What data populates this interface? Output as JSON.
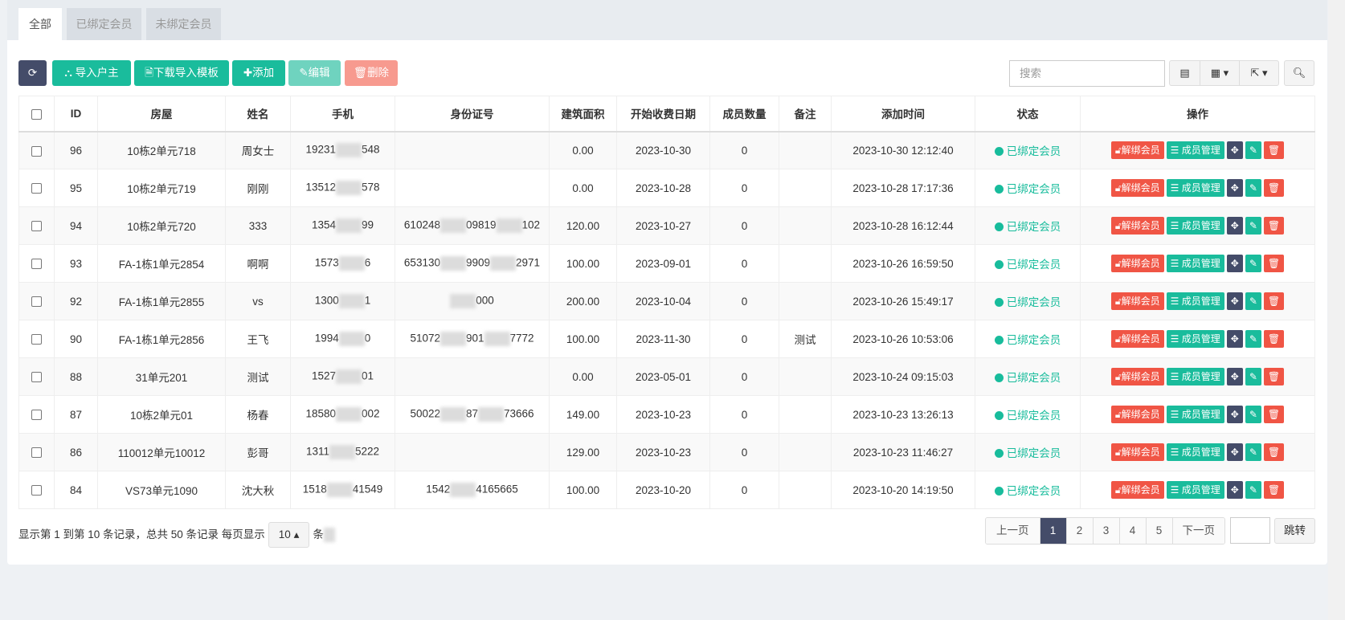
{
  "tabs": [
    "全部",
    "已绑定会员",
    "未绑定会员"
  ],
  "toolbar": {
    "import": "导入户主",
    "template": "下载导入模板",
    "add": "添加",
    "edit": "编辑",
    "delete": "删除",
    "search_placeholder": "搜索"
  },
  "columns": [
    "ID",
    "房屋",
    "姓名",
    "手机",
    "身份证号",
    "建筑面积",
    "开始收费日期",
    "成员数量",
    "备注",
    "添加时间",
    "状态",
    "操作"
  ],
  "rows": [
    {
      "id": "96",
      "house": "10栋2单元718",
      "name": "周女士",
      "phone": [
        "19231",
        "548"
      ],
      "idno": [
        "",
        ""
      ],
      "area": "0.00",
      "start": "2023-10-30",
      "members": "0",
      "remark": "",
      "added": "2023-10-30 12:12:40",
      "status": "已绑定会员"
    },
    {
      "id": "95",
      "house": "10栋2单元719",
      "name": "刚刚",
      "phone": [
        "13512",
        "578"
      ],
      "idno": [
        "",
        ""
      ],
      "area": "0.00",
      "start": "2023-10-28",
      "members": "0",
      "remark": "",
      "added": "2023-10-28 17:17:36",
      "status": "已绑定会员"
    },
    {
      "id": "94",
      "house": "10栋2单元720",
      "name": "333",
      "phone": [
        "1354",
        "99"
      ],
      "idno": [
        "610248",
        "09819",
        "102"
      ],
      "area": "120.00",
      "start": "2023-10-27",
      "members": "0",
      "remark": "",
      "added": "2023-10-28 16:12:44",
      "status": "已绑定会员"
    },
    {
      "id": "93",
      "house": "FA-1栋1单元2854",
      "name": "啊啊",
      "phone": [
        "1573",
        "6"
      ],
      "idno": [
        "653130",
        "9909",
        "2971"
      ],
      "area": "100.00",
      "start": "2023-09-01",
      "members": "0",
      "remark": "",
      "added": "2023-10-26 16:59:50",
      "status": "已绑定会员"
    },
    {
      "id": "92",
      "house": "FA-1栋1单元2855",
      "name": "vs",
      "phone": [
        "1300",
        "1"
      ],
      "idno": [
        "",
        "000"
      ],
      "area": "200.00",
      "start": "2023-10-04",
      "members": "0",
      "remark": "",
      "added": "2023-10-26 15:49:17",
      "status": "已绑定会员"
    },
    {
      "id": "90",
      "house": "FA-1栋1单元2856",
      "name": "王飞",
      "phone": [
        "1994",
        "0"
      ],
      "idno": [
        "51072",
        "901",
        "7772"
      ],
      "area": "100.00",
      "start": "2023-11-30",
      "members": "0",
      "remark": "测试",
      "added": "2023-10-26 10:53:06",
      "status": "已绑定会员"
    },
    {
      "id": "88",
      "house": "31单元201",
      "name": "测试",
      "phone": [
        "1527",
        "01"
      ],
      "idno": [
        "",
        ""
      ],
      "area": "0.00",
      "start": "2023-05-01",
      "members": "0",
      "remark": "",
      "added": "2023-10-24 09:15:03",
      "status": "已绑定会员"
    },
    {
      "id": "87",
      "house": "10栋2单元01",
      "name": "杨春",
      "phone": [
        "18580",
        "002"
      ],
      "idno": [
        "50022",
        "87",
        "73666"
      ],
      "area": "149.00",
      "start": "2023-10-23",
      "members": "0",
      "remark": "",
      "added": "2023-10-23 13:26:13",
      "status": "已绑定会员"
    },
    {
      "id": "86",
      "house": "110012单元10012",
      "name": "彭哥",
      "phone": [
        "1311",
        "5222"
      ],
      "idno": [
        "",
        ""
      ],
      "area": "129.00",
      "start": "2023-10-23",
      "members": "0",
      "remark": "",
      "added": "2023-10-23 11:46:27",
      "status": "已绑定会员"
    },
    {
      "id": "84",
      "house": "VS73单元1090",
      "name": "沈大秋",
      "phone": [
        "1518",
        "41549"
      ],
      "idno": [
        "1542",
        "4165665"
      ],
      "area": "100.00",
      "start": "2023-10-20",
      "members": "0",
      "remark": "",
      "added": "2023-10-20 14:19:50",
      "status": "已绑定会员"
    }
  ],
  "actions": {
    "unbind": "解绑会员",
    "members": "成员管理"
  },
  "footer": {
    "pre": "显示第 1 到第 10 条记录，总共 50 条记录 每页显示",
    "page_size": "10",
    "post": "条"
  },
  "pager": {
    "prev": "上一页",
    "pages": [
      "1",
      "2",
      "3",
      "4",
      "5"
    ],
    "current": "1",
    "next": "下一页",
    "jump": "跳转"
  },
  "colors": {
    "navy": "#444c69",
    "teal": "#1abc9c",
    "red": "#f05545"
  }
}
